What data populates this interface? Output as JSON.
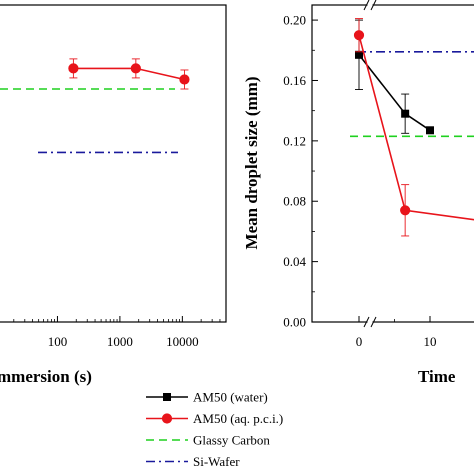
{
  "chart_data": [
    {
      "type": "line",
      "x_scale": "log",
      "xlim": [
        10,
        50000
      ],
      "ylim": [
        0,
        0.2
      ],
      "xlabel_visible": "mmersion (s)",
      "x_ticks": [
        {
          "value": 100,
          "label": "100"
        },
        {
          "value": 1000,
          "label": "1000"
        },
        {
          "value": 10000,
          "label": "10000"
        }
      ],
      "series": [
        {
          "name": "AM50 (aq. p.c.i.)",
          "color": "#e8141b",
          "marker": "circle",
          "x": [
            180,
            1800,
            10800
          ],
          "y": [
            0.16,
            0.16,
            0.153
          ],
          "err": [
            0.006,
            0.006,
            0.006
          ]
        }
      ],
      "reference_lines": [
        {
          "name": "Glassy Carbon",
          "y": 0.147,
          "color": "#1fd11f",
          "style": "dashed"
        },
        {
          "name": "Si-Wafer",
          "y": 0.107,
          "color": "#1a1a9c",
          "style": "dashdot"
        }
      ]
    },
    {
      "type": "line",
      "ylabel": "Mean droplet size (mm)",
      "xlabel_visible": "Time",
      "xlim": [
        -2,
        20
      ],
      "ylim": [
        0,
        0.21
      ],
      "axis_break": true,
      "y_ticks": [
        {
          "value": 0,
          "label": "0.00"
        },
        {
          "value": 0.04,
          "label": "0.04"
        },
        {
          "value": 0.08,
          "label": "0.08"
        },
        {
          "value": 0.12,
          "label": "0.12"
        },
        {
          "value": 0.16,
          "label": "0.16"
        },
        {
          "value": 0.2,
          "label": "0.20"
        }
      ],
      "x_ticks": [
        {
          "value": 0,
          "label": "0"
        },
        {
          "value": 10,
          "label": "10"
        }
      ],
      "series": [
        {
          "name": "AM50 (water)",
          "color": "#000000",
          "marker": "square",
          "x": [
            0,
            6.5,
            10
          ],
          "y": [
            0.177,
            0.138,
            0.127
          ],
          "err": [
            0.023,
            0.013,
            0
          ]
        },
        {
          "name": "AM50 (aq. p.c.i.)",
          "color": "#e8141b",
          "marker": "circle",
          "x": [
            0,
            6.5,
            19
          ],
          "y": [
            0.19,
            0.074,
            0.066
          ],
          "err": [
            0.011,
            0.017,
            0.009
          ]
        }
      ],
      "reference_lines": [
        {
          "name": "Glassy Carbon",
          "y": 0.123,
          "color": "#1fd11f",
          "style": "dashed"
        },
        {
          "name": "Si-Wafer",
          "y": 0.179,
          "color": "#1a1a9c",
          "style": "dashdot"
        }
      ]
    }
  ],
  "legend": {
    "placement": "bottom-center",
    "entries": [
      {
        "label": "AM50 (water)",
        "color": "#000000",
        "marker": "square",
        "style": "solid"
      },
      {
        "label": "AM50 (aq. p.c.i.)",
        "color": "#e8141b",
        "marker": "circle",
        "style": "solid"
      },
      {
        "label": "Glassy Carbon",
        "color": "#1fd11f",
        "marker": "none",
        "style": "dashed"
      },
      {
        "label": "Si-Wafer",
        "color": "#1a1a9c",
        "marker": "none",
        "style": "dashdot"
      }
    ]
  }
}
